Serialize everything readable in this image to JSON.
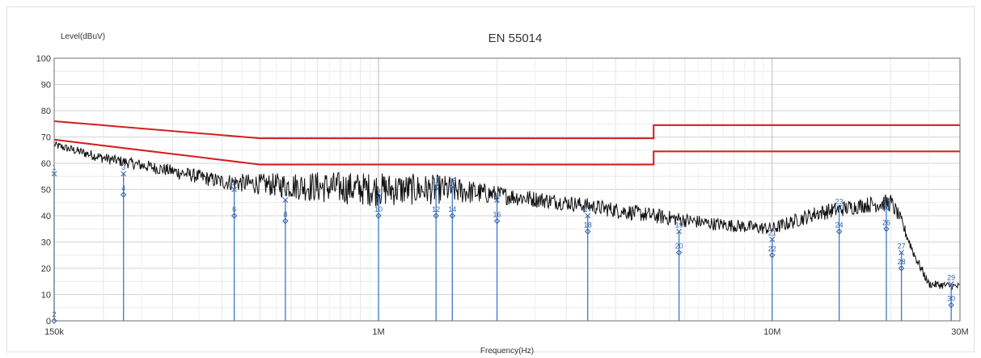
{
  "chart_data": {
    "type": "line",
    "title": "EN 55014",
    "xlabel": "Frequency(Hz)",
    "ylabel": "Level(dBuV)",
    "x_scale": "log",
    "xlim": [
      150000,
      30000000
    ],
    "ylim": [
      0,
      100
    ],
    "grid": true,
    "y_ticks": [
      0,
      10,
      20,
      30,
      40,
      50,
      60,
      70,
      80,
      90,
      100
    ],
    "x_tick_labels": [
      {
        "value": 150000,
        "label": "150k"
      },
      {
        "value": 1000000,
        "label": "1M"
      },
      {
        "value": 10000000,
        "label": "10M"
      },
      {
        "value": 30000000,
        "label": "30M"
      }
    ],
    "limit_lines": [
      {
        "color": "#d21f1f",
        "points": [
          [
            150000,
            76
          ],
          [
            500000,
            69.5
          ],
          [
            5000000,
            69.5
          ],
          [
            5000000,
            74.5
          ],
          [
            30000000,
            74.5
          ]
        ]
      },
      {
        "color": "#d21f1f",
        "points": [
          [
            150000,
            69
          ],
          [
            500000,
            59.5
          ],
          [
            5000000,
            59.5
          ],
          [
            5000000,
            64.5
          ],
          [
            30000000,
            64.5
          ]
        ]
      }
    ],
    "series": [
      {
        "color": "#111111",
        "envelope": [
          {
            "x": 150000,
            "y": 67,
            "spread": 3
          },
          {
            "x": 200000,
            "y": 62,
            "spread": 4
          },
          {
            "x": 300000,
            "y": 57,
            "spread": 5
          },
          {
            "x": 400000,
            "y": 53,
            "spread": 6
          },
          {
            "x": 500000,
            "y": 52,
            "spread": 8
          },
          {
            "x": 700000,
            "y": 51,
            "spread": 12
          },
          {
            "x": 1000000,
            "y": 50,
            "spread": 13
          },
          {
            "x": 1500000,
            "y": 50,
            "spread": 11
          },
          {
            "x": 2000000,
            "y": 48,
            "spread": 7
          },
          {
            "x": 3000000,
            "y": 45,
            "spread": 6
          },
          {
            "x": 5000000,
            "y": 40,
            "spread": 6
          },
          {
            "x": 7000000,
            "y": 37,
            "spread": 5
          },
          {
            "x": 10000000,
            "y": 35,
            "spread": 5
          },
          {
            "x": 13000000,
            "y": 41,
            "spread": 6
          },
          {
            "x": 17000000,
            "y": 44,
            "spread": 6
          },
          {
            "x": 20000000,
            "y": 45,
            "spread": 7
          },
          {
            "x": 21000000,
            "y": 40,
            "spread": 5
          },
          {
            "x": 23000000,
            "y": 25,
            "spread": 4
          },
          {
            "x": 25000000,
            "y": 14,
            "spread": 3
          },
          {
            "x": 30000000,
            "y": 13,
            "spread": 3
          }
        ]
      }
    ],
    "markers": [
      {
        "x": 150000,
        "qp": 56,
        "avg": 0,
        "label_qp": "1",
        "label_avg": "2"
      },
      {
        "x": 225000,
        "qp": 56,
        "avg": 48,
        "label_qp": "3",
        "label_avg": "4"
      },
      {
        "x": 430000,
        "qp": 50,
        "avg": 40,
        "label_qp": "5",
        "label_avg": "6"
      },
      {
        "x": 580000,
        "qp": 46,
        "avg": 38,
        "label_qp": "7",
        "label_avg": "8"
      },
      {
        "x": 1000000,
        "qp": 47,
        "avg": 40,
        "label_qp": "9",
        "label_avg": "10"
      },
      {
        "x": 1400000,
        "qp": 51,
        "avg": 40,
        "label_qp": "11",
        "label_avg": "12"
      },
      {
        "x": 1540000,
        "qp": 51,
        "avg": 40,
        "label_qp": "13",
        "label_avg": "14"
      },
      {
        "x": 2000000,
        "qp": 46,
        "avg": 38,
        "label_qp": "15",
        "label_avg": "16"
      },
      {
        "x": 3400000,
        "qp": 40,
        "avg": 34,
        "label_qp": "17",
        "label_avg": "18"
      },
      {
        "x": 5800000,
        "qp": 34,
        "avg": 26,
        "label_qp": "19",
        "label_avg": "20"
      },
      {
        "x": 10000000,
        "qp": 31,
        "avg": 25,
        "label_qp": "21",
        "label_avg": "22"
      },
      {
        "x": 14800000,
        "qp": 43,
        "avg": 34,
        "label_qp": "23",
        "label_avg": "24"
      },
      {
        "x": 19500000,
        "qp": 43,
        "avg": 35,
        "label_qp": "25",
        "label_avg": "26"
      },
      {
        "x": 21300000,
        "qp": 26,
        "avg": 20,
        "label_qp": "27",
        "label_avg": "28"
      },
      {
        "x": 28500000,
        "qp": 14,
        "avg": 6,
        "label_qp": "29",
        "label_avg": "30"
      }
    ]
  }
}
